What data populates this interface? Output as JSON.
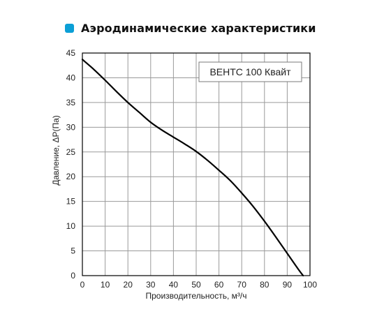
{
  "header": {
    "title": "Аэродинамические характеристики",
    "icon": "diamond-bullet-icon",
    "icon_color": "#0b9fd6"
  },
  "chart_data": {
    "type": "line",
    "title": "Аэродинамические характеристики",
    "xlabel": "Производительность, м³/ч",
    "ylabel": "Давление, ΔP(Па)",
    "xlim": [
      0,
      100
    ],
    "ylim": [
      0,
      45
    ],
    "xticks": [
      0,
      10,
      20,
      30,
      40,
      50,
      60,
      70,
      80,
      90,
      100
    ],
    "yticks": [
      0,
      5,
      10,
      15,
      20,
      25,
      30,
      35,
      40,
      45
    ],
    "grid": true,
    "legend_position": "top-right",
    "series": [
      {
        "name": "ВЕНТС 100 Квайт",
        "color": "#000000",
        "x": [
          0,
          5,
          10,
          15,
          20,
          25,
          30,
          35,
          40,
          45,
          50,
          55,
          60,
          65,
          70,
          75,
          80,
          85,
          90,
          95,
          97
        ],
        "y": [
          43.7,
          41.7,
          39.5,
          37.2,
          35.0,
          33.0,
          31.0,
          29.4,
          28.0,
          26.6,
          25.1,
          23.3,
          21.3,
          19.2,
          16.7,
          14.0,
          11.0,
          7.8,
          4.5,
          1.2,
          0
        ]
      }
    ]
  }
}
